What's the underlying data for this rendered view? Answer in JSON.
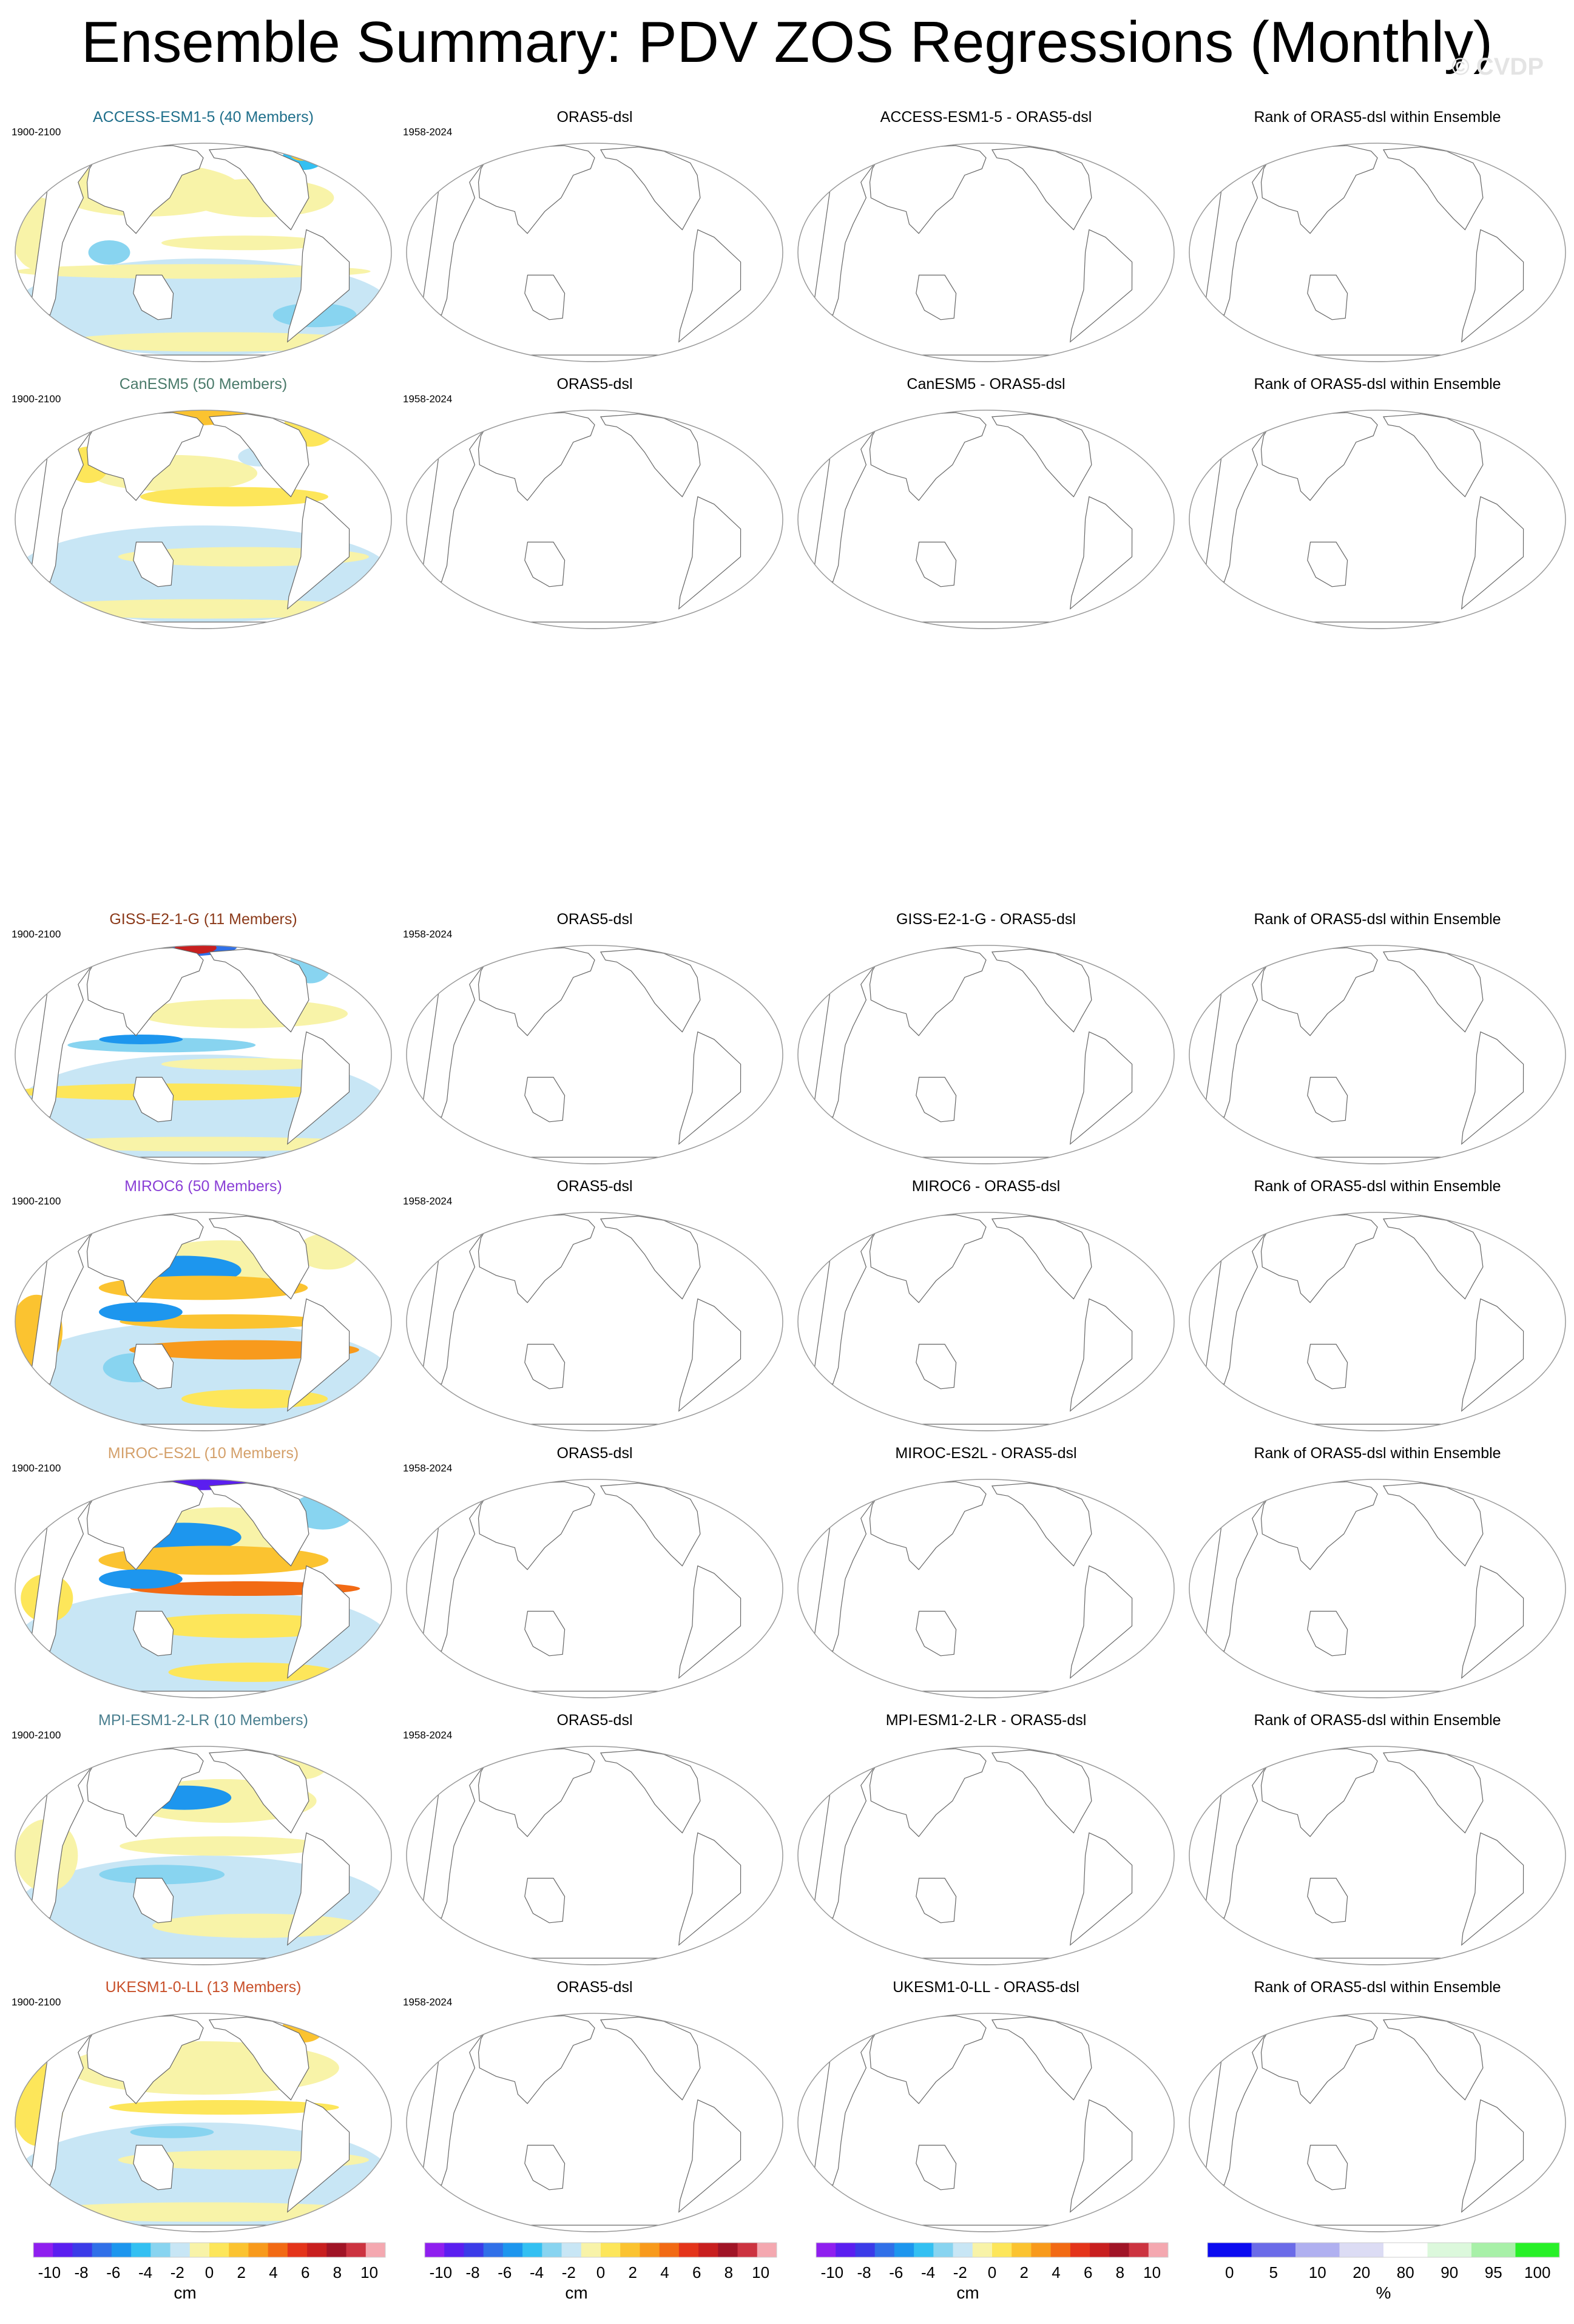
{
  "title": "Ensemble Summary: PDV ZOS Regressions (Monthly)",
  "watermark": "© CVDP",
  "rows": [
    {
      "model": "ACCESS-ESM1-5",
      "ens_title": "ACCESS-ESM1-5 (40 Members)",
      "ens_color": "#1f6f8b",
      "model_period": "1900-2100",
      "obs_title": "ORAS5-dsl",
      "obs_period": "1958-2024",
      "diff_title": "ACCESS-ESM1-5 - ORAS5-dsl",
      "rank_title": "Rank of ORAS5-dsl within Ensemble",
      "pattern": "access"
    },
    {
      "model": "CanESM5",
      "ens_title": "CanESM5 (50 Members)",
      "ens_color": "#4a7a6a",
      "model_period": "1900-2100",
      "obs_title": "ORAS5-dsl",
      "obs_period": "1958-2024",
      "diff_title": "CanESM5 - ORAS5-dsl",
      "rank_title": "Rank of ORAS5-dsl within Ensemble",
      "pattern": "canesm"
    },
    {
      "model": "GISS-E2-1-G",
      "ens_title": "GISS-E2-1-G (11 Members)",
      "ens_color": "#8b3a1a",
      "model_period": "1900-2100",
      "obs_title": "ORAS5-dsl",
      "obs_period": "1958-2024",
      "diff_title": "GISS-E2-1-G - ORAS5-dsl",
      "rank_title": "Rank of ORAS5-dsl within Ensemble",
      "pattern": "giss"
    },
    {
      "model": "MIROC6",
      "ens_title": "MIROC6 (50 Members)",
      "ens_color": "#8a3fd6",
      "model_period": "1900-2100",
      "obs_title": "ORAS5-dsl",
      "obs_period": "1958-2024",
      "diff_title": "MIROC6 - ORAS5-dsl",
      "rank_title": "Rank of ORAS5-dsl within Ensemble",
      "pattern": "miroc6"
    },
    {
      "model": "MIROC-ES2L",
      "ens_title": "MIROC-ES2L (10 Members)",
      "ens_color": "#d4a06a",
      "model_period": "1900-2100",
      "obs_title": "ORAS5-dsl",
      "obs_period": "1958-2024",
      "diff_title": "MIROC-ES2L - ORAS5-dsl",
      "rank_title": "Rank of ORAS5-dsl within Ensemble",
      "pattern": "mirocES2L"
    },
    {
      "model": "MPI-ESM1-2-LR",
      "ens_title": "MPI-ESM1-2-LR (10 Members)",
      "ens_color": "#4a7f8f",
      "model_period": "1900-2100",
      "obs_title": "ORAS5-dsl",
      "obs_period": "1958-2024",
      "diff_title": "MPI-ESM1-2-LR - ORAS5-dsl",
      "rank_title": "Rank of ORAS5-dsl within Ensemble",
      "pattern": "mpi"
    },
    {
      "model": "UKESM1-0-LL",
      "ens_title": "UKESM1-0-LL (13 Members)",
      "ens_color": "#c8502a",
      "model_period": "1900-2100",
      "obs_title": "ORAS5-dsl",
      "obs_period": "1958-2024",
      "diff_title": "UKESM1-0-LL - ORAS5-dsl",
      "rank_title": "Rank of ORAS5-dsl within Ensemble",
      "pattern": "ukesm"
    }
  ],
  "colorbars": [
    {
      "unit": "cm",
      "ticks": [
        "-10",
        "-8",
        "-6",
        "-4",
        "-2",
        "0",
        "2",
        "4",
        "6",
        "8",
        "10"
      ],
      "colors": [
        "#8f1fef",
        "#5b1ef0",
        "#3b3be8",
        "#3070e8",
        "#1d96ee",
        "#33c0f2",
        "#88d4f0",
        "#c8e6f5",
        "#f8f3a8",
        "#fde65a",
        "#fbc330",
        "#f89a1c",
        "#f26a14",
        "#e4341a",
        "#c81f1f",
        "#a01426",
        "#cc3340",
        "#f4a8b0"
      ]
    },
    {
      "unit": "cm",
      "ticks": [
        "-10",
        "-8",
        "-6",
        "-4",
        "-2",
        "0",
        "2",
        "4",
        "6",
        "8",
        "10"
      ],
      "colors": [
        "#8f1fef",
        "#5b1ef0",
        "#3b3be8",
        "#3070e8",
        "#1d96ee",
        "#33c0f2",
        "#88d4f0",
        "#c8e6f5",
        "#f8f3a8",
        "#fde65a",
        "#fbc330",
        "#f89a1c",
        "#f26a14",
        "#e4341a",
        "#c81f1f",
        "#a01426",
        "#cc3340",
        "#f4a8b0"
      ]
    },
    {
      "unit": "cm",
      "ticks": [
        "-10",
        "-8",
        "-6",
        "-4",
        "-2",
        "0",
        "2",
        "4",
        "6",
        "8",
        "10"
      ],
      "colors": [
        "#8f1fef",
        "#5b1ef0",
        "#3b3be8",
        "#3070e8",
        "#1d96ee",
        "#33c0f2",
        "#88d4f0",
        "#c8e6f5",
        "#f8f3a8",
        "#fde65a",
        "#fbc330",
        "#f89a1c",
        "#f26a14",
        "#e4341a",
        "#c81f1f",
        "#a01426",
        "#cc3340",
        "#f4a8b0"
      ]
    },
    {
      "unit": "%",
      "ticks": [
        "0",
        "5",
        "10",
        "20",
        "80",
        "90",
        "95",
        "100"
      ],
      "colors": [
        "#0b0bf0",
        "#6b6be8",
        "#b0b0f0",
        "#dcdcf4",
        "#ffffff",
        "#dcf8dc",
        "#a8f0a8",
        "#28f028"
      ]
    }
  ]
}
